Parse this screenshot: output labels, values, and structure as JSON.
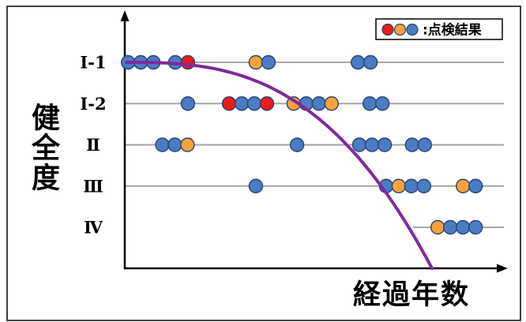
{
  "chart_data": {
    "type": "scatter",
    "xlabel": "経過年数",
    "ylabel": "健全度",
    "y_categories": [
      "Ⅰ-1",
      "Ⅰ-2",
      "Ⅱ",
      "Ⅲ",
      "Ⅳ"
    ],
    "xlim": [
      0,
      100
    ],
    "grid": "horizontal",
    "legend": {
      "position": "top-right",
      "label": ":点検結果",
      "colors": [
        "red",
        "orange",
        "blue"
      ]
    },
    "colors": {
      "red": "#ec1b1b",
      "orange": "#f5a33b",
      "blue": "#4a7cc3",
      "curve": "#7e2a9e",
      "grid": "#a6a6a6"
    },
    "rows": [
      [
        {
          "x": 0.9,
          "color": "blue"
        },
        {
          "x": 4.3,
          "color": "blue"
        },
        {
          "x": 7.7,
          "color": "blue"
        },
        {
          "x": 13.6,
          "color": "blue"
        },
        {
          "x": 17.0,
          "color": "red"
        },
        {
          "x": 35.3,
          "color": "orange"
        },
        {
          "x": 38.7,
          "color": "blue"
        },
        {
          "x": 62.8,
          "color": "blue"
        },
        {
          "x": 66.2,
          "color": "blue"
        }
      ],
      [
        {
          "x": 17.0,
          "color": "blue"
        },
        {
          "x": 28.1,
          "color": "red"
        },
        {
          "x": 31.5,
          "color": "blue"
        },
        {
          "x": 34.9,
          "color": "blue"
        },
        {
          "x": 38.3,
          "color": "red"
        },
        {
          "x": 45.5,
          "color": "orange"
        },
        {
          "x": 48.9,
          "color": "blue"
        },
        {
          "x": 52.3,
          "color": "blue"
        },
        {
          "x": 55.7,
          "color": "orange"
        },
        {
          "x": 66.0,
          "color": "blue"
        },
        {
          "x": 69.4,
          "color": "blue"
        }
      ],
      [
        {
          "x": 10.1,
          "color": "blue"
        },
        {
          "x": 13.5,
          "color": "blue"
        },
        {
          "x": 16.9,
          "color": "orange"
        },
        {
          "x": 46.4,
          "color": "blue"
        },
        {
          "x": 63.2,
          "color": "blue"
        },
        {
          "x": 66.6,
          "color": "blue"
        },
        {
          "x": 70.0,
          "color": "blue"
        },
        {
          "x": 77.4,
          "color": "blue"
        },
        {
          "x": 80.8,
          "color": "blue"
        }
      ],
      [
        {
          "x": 35.3,
          "color": "blue"
        },
        {
          "x": 70.4,
          "color": "blue"
        },
        {
          "x": 73.8,
          "color": "orange"
        },
        {
          "x": 77.2,
          "color": "blue"
        },
        {
          "x": 80.6,
          "color": "blue"
        },
        {
          "x": 91.1,
          "color": "orange"
        },
        {
          "x": 94.5,
          "color": "blue"
        }
      ],
      [
        {
          "x": 84.3,
          "color": "orange"
        },
        {
          "x": 87.7,
          "color": "blue"
        },
        {
          "x": 91.1,
          "color": "blue"
        },
        {
          "x": 94.5,
          "color": "blue"
        }
      ]
    ]
  }
}
